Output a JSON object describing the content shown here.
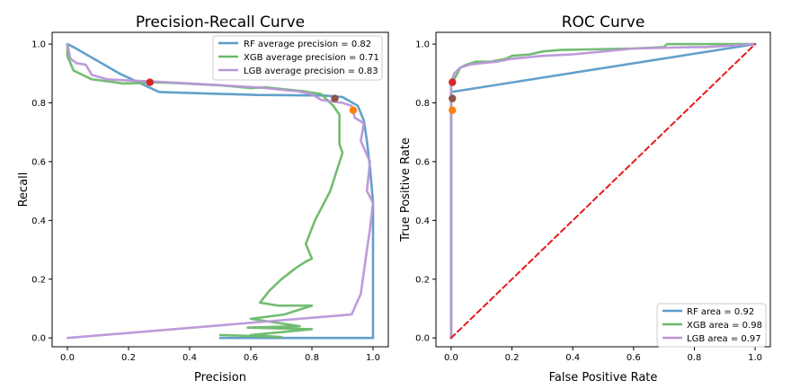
{
  "chart_data": [
    {
      "type": "line",
      "title": "Precision-Recall Curve",
      "xlabel": "Precision",
      "ylabel": "Recall",
      "xlim": [
        -0.05,
        1.05
      ],
      "ylim": [
        -0.03,
        1.04
      ],
      "xticks": [
        0.0,
        0.2,
        0.4,
        0.6,
        0.8,
        1.0
      ],
      "yticks": [
        0.0,
        0.2,
        0.4,
        0.6,
        0.8,
        1.0
      ],
      "xtick_labels": [
        "0.0",
        "0.2",
        "0.4",
        "0.6",
        "0.8",
        "1.0"
      ],
      "ytick_labels": [
        "0.0",
        "0.2",
        "0.4",
        "0.6",
        "0.8",
        "1.0"
      ],
      "grid": false,
      "legend_position": "top-right",
      "series": [
        {
          "name": "RF average precision = 0.82",
          "color": "#5b9bc8",
          "points": [
            [
              0.0,
              1.0
            ],
            [
              0.02,
              0.99
            ],
            [
              0.17,
              0.9
            ],
            [
              0.3,
              0.837
            ],
            [
              0.62,
              0.827
            ],
            [
              0.84,
              0.825
            ],
            [
              0.9,
              0.82
            ],
            [
              0.95,
              0.79
            ],
            [
              0.97,
              0.74
            ],
            [
              0.98,
              0.67
            ],
            [
              0.99,
              0.58
            ],
            [
              1.0,
              0.46
            ],
            [
              1.0,
              0.0
            ],
            [
              0.5,
              0.0
            ]
          ]
        },
        {
          "name": "XGB average precision = 0.71",
          "color": "#6ab86a",
          "points": [
            [
              0.0,
              1.0
            ],
            [
              0.0,
              0.96
            ],
            [
              0.02,
              0.91
            ],
            [
              0.05,
              0.895
            ],
            [
              0.08,
              0.88
            ],
            [
              0.12,
              0.875
            ],
            [
              0.18,
              0.866
            ],
            [
              0.25,
              0.868
            ],
            [
              0.28,
              0.87
            ],
            [
              0.35,
              0.868
            ],
            [
              0.42,
              0.864
            ],
            [
              0.5,
              0.86
            ],
            [
              0.55,
              0.855
            ],
            [
              0.6,
              0.85
            ],
            [
              0.65,
              0.853
            ],
            [
              0.7,
              0.847
            ],
            [
              0.77,
              0.84
            ],
            [
              0.83,
              0.83
            ],
            [
              0.86,
              0.8
            ],
            [
              0.87,
              0.79
            ],
            [
              0.89,
              0.76
            ],
            [
              0.89,
              0.66
            ],
            [
              0.9,
              0.63
            ],
            [
              0.86,
              0.5
            ],
            [
              0.81,
              0.4
            ],
            [
              0.78,
              0.32
            ],
            [
              0.8,
              0.27
            ],
            [
              0.78,
              0.26
            ],
            [
              0.75,
              0.24
            ],
            [
              0.7,
              0.2
            ],
            [
              0.66,
              0.16
            ],
            [
              0.63,
              0.12
            ],
            [
              0.69,
              0.11
            ],
            [
              0.8,
              0.11
            ],
            [
              0.71,
              0.08
            ],
            [
              0.6,
              0.065
            ],
            [
              0.76,
              0.04
            ],
            [
              0.59,
              0.035
            ],
            [
              0.8,
              0.03
            ],
            [
              0.6,
              0.01
            ],
            [
              0.7,
              0.003
            ],
            [
              0.5,
              0.01
            ]
          ]
        },
        {
          "name": "LGB average precision = 0.83",
          "color": "#b996d8",
          "points": [
            [
              0.0,
              1.0
            ],
            [
              0.01,
              0.95
            ],
            [
              0.03,
              0.935
            ],
            [
              0.06,
              0.93
            ],
            [
              0.08,
              0.895
            ],
            [
              0.13,
              0.88
            ],
            [
              0.2,
              0.876
            ],
            [
              0.3,
              0.872
            ],
            [
              0.4,
              0.866
            ],
            [
              0.5,
              0.86
            ],
            [
              0.63,
              0.852
            ],
            [
              0.7,
              0.845
            ],
            [
              0.75,
              0.84
            ],
            [
              0.8,
              0.83
            ],
            [
              0.83,
              0.81
            ],
            [
              0.9,
              0.8
            ],
            [
              0.93,
              0.79
            ],
            [
              0.94,
              0.75
            ],
            [
              0.97,
              0.73
            ],
            [
              0.96,
              0.67
            ],
            [
              0.99,
              0.6
            ],
            [
              0.98,
              0.5
            ],
            [
              1.0,
              0.46
            ],
            [
              0.99,
              0.37
            ],
            [
              0.98,
              0.3
            ],
            [
              0.96,
              0.15
            ],
            [
              0.93,
              0.08
            ],
            [
              0.0,
              0.0
            ]
          ]
        }
      ],
      "markers": [
        {
          "x": 0.27,
          "y": 0.87,
          "color": "#d62728"
        },
        {
          "x": 0.875,
          "y": 0.815,
          "color": "#8c564b"
        },
        {
          "x": 0.935,
          "y": 0.775,
          "color": "#ff7f0e"
        }
      ]
    },
    {
      "type": "line",
      "title": "ROC Curve",
      "xlabel": "False Positive Rate",
      "ylabel": "True Positive Rate",
      "xlim": [
        -0.05,
        1.05
      ],
      "ylim": [
        -0.03,
        1.04
      ],
      "xticks": [
        0.0,
        0.2,
        0.4,
        0.6,
        0.8,
        1.0
      ],
      "yticks": [
        0.0,
        0.2,
        0.4,
        0.6,
        0.8,
        1.0
      ],
      "xtick_labels": [
        "0.0",
        "0.2",
        "0.4",
        "0.6",
        "0.8",
        "1.0"
      ],
      "ytick_labels": [
        "0.0",
        "0.2",
        "0.4",
        "0.6",
        "0.8",
        "1.0"
      ],
      "grid": false,
      "legend_position": "bottom-right",
      "series": [
        {
          "name": "RF area = 0.92",
          "color": "#5b9bc8",
          "points": [
            [
              0.0,
              0.0
            ],
            [
              0.0,
              0.837
            ],
            [
              0.02,
              0.84
            ],
            [
              1.0,
              1.0
            ]
          ]
        },
        {
          "name": "XGB area = 0.98",
          "color": "#6ab86a",
          "points": [
            [
              0.0,
              0.0
            ],
            [
              0.0,
              0.86
            ],
            [
              0.01,
              0.88
            ],
            [
              0.02,
              0.9
            ],
            [
              0.03,
              0.92
            ],
            [
              0.05,
              0.93
            ],
            [
              0.08,
              0.94
            ],
            [
              0.13,
              0.94
            ],
            [
              0.18,
              0.95
            ],
            [
              0.2,
              0.96
            ],
            [
              0.26,
              0.965
            ],
            [
              0.3,
              0.975
            ],
            [
              0.36,
              0.98
            ],
            [
              0.6,
              0.985
            ],
            [
              0.7,
              0.99
            ],
            [
              0.71,
              1.0
            ],
            [
              0.83,
              1.0
            ],
            [
              1.0,
              1.0
            ]
          ]
        },
        {
          "name": "LGB area = 0.97",
          "color": "#b996d8",
          "points": [
            [
              0.0,
              0.0
            ],
            [
              0.0,
              0.87
            ],
            [
              0.01,
              0.9
            ],
            [
              0.03,
              0.92
            ],
            [
              0.06,
              0.93
            ],
            [
              0.1,
              0.935
            ],
            [
              0.15,
              0.94
            ],
            [
              0.2,
              0.95
            ],
            [
              0.25,
              0.955
            ],
            [
              0.3,
              0.96
            ],
            [
              0.4,
              0.965
            ],
            [
              0.5,
              0.975
            ],
            [
              0.6,
              0.985
            ],
            [
              0.8,
              0.99
            ],
            [
              0.84,
              0.99
            ],
            [
              1.0,
              1.0
            ]
          ]
        },
        {
          "name": "",
          "color": "#e31a1c",
          "dashed": true,
          "points": [
            [
              0.0,
              0.0
            ],
            [
              1.0,
              1.0
            ]
          ]
        }
      ],
      "markers": [
        {
          "x": 0.004,
          "y": 0.87,
          "color": "#d62728"
        },
        {
          "x": 0.004,
          "y": 0.815,
          "color": "#8c564b"
        },
        {
          "x": 0.004,
          "y": 0.775,
          "color": "#ff7f0e"
        }
      ]
    }
  ]
}
